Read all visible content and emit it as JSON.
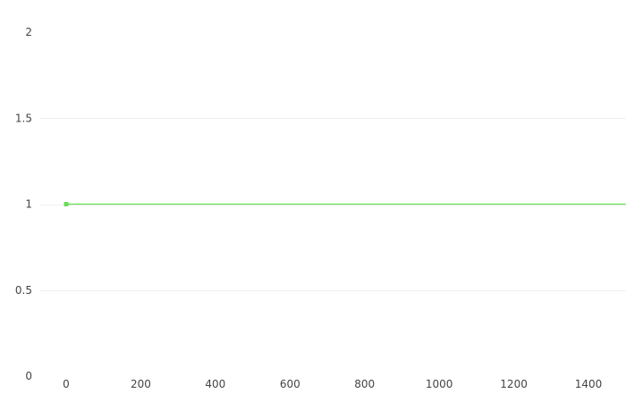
{
  "chart_data": {
    "type": "line",
    "title": "",
    "xlabel": "",
    "ylabel": "",
    "xlim": [
      -40,
      1500
    ],
    "ylim": [
      0,
      2
    ],
    "x_ticks": [
      0,
      200,
      400,
      600,
      800,
      1000,
      1200,
      1400
    ],
    "x_tick_labels": [
      "0",
      "200",
      "400",
      "600",
      "800",
      "1000",
      "1200",
      "1400"
    ],
    "y_ticks": [
      0,
      0.5,
      1,
      1.5,
      2
    ],
    "y_tick_labels": [
      "0",
      "0.5",
      "1",
      "1.5",
      "2"
    ],
    "grid": true,
    "legend": false,
    "series": [
      {
        "color": "#66dd55",
        "x": [
          0,
          1500
        ],
        "y": [
          1,
          1
        ],
        "markers": [
          {
            "x": 0,
            "y": 1
          }
        ]
      }
    ]
  }
}
